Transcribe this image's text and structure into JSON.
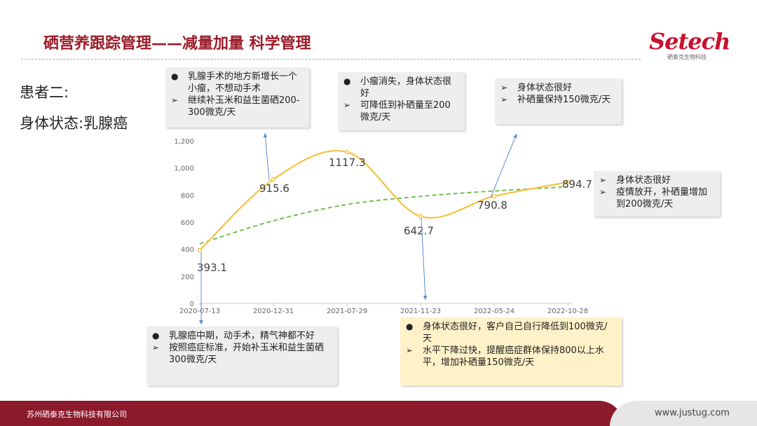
{
  "header": {
    "title": "硒营养跟踪管理——减量加量  科学管理",
    "logo_text": "Setech",
    "logo_sub": "硒泰克生物科技"
  },
  "patient": {
    "label": "患者二:",
    "status": "身体状态:乳腺癌"
  },
  "chart_data": {
    "type": "line",
    "x": [
      "2020-07-13",
      "2020-12-31",
      "2021-07-29",
      "2021-11-23",
      "2022-05-24",
      "2022-10-28"
    ],
    "series": [
      {
        "values": [
          393.1,
          915.6,
          1117.3,
          642.7,
          790.8,
          894.7
        ],
        "color": "#f5c242",
        "smooth": true,
        "data_labels": true
      },
      {
        "trendline": "logarithmic",
        "values_estimated": [
          440,
          610,
          730,
          790,
          830,
          860
        ],
        "color": "#70c050",
        "dashed": true
      }
    ],
    "data_labels": [
      "393.1",
      "915.6",
      "1117.3",
      "642.7",
      "790.8",
      "894.7"
    ],
    "y_ticks": [
      "0",
      "200",
      "400",
      "600",
      "800",
      "1,000",
      "1,200"
    ],
    "ylim": [
      0,
      1200
    ],
    "grid": false,
    "legend": "none"
  },
  "annotations": [
    {
      "id": "ann-1",
      "lines": [
        {
          "bullet": "●",
          "text": "乳腺手术的地方新增长一个小瘤，不想动手术"
        },
        {
          "bullet": "➢",
          "text": "继续补玉米和益生菌硒200-300微克/天"
        }
      ]
    },
    {
      "id": "ann-2",
      "lines": [
        {
          "bullet": "●",
          "text": "小瘤消失，身体状态很好"
        },
        {
          "bullet": "➢",
          "text": "可降低到补硒量至200微克/天"
        }
      ]
    },
    {
      "id": "ann-3",
      "lines": [
        {
          "bullet": "➢",
          "text": "身体状态很好"
        },
        {
          "bullet": "➢",
          "text": "补硒量保持150微克/天"
        }
      ]
    },
    {
      "id": "ann-4",
      "lines": [
        {
          "bullet": "➢",
          "text": "身体状态很好"
        },
        {
          "bullet": "➢",
          "text": "疫情放开，补硒量增加到200微克/天"
        }
      ]
    },
    {
      "id": "ann-5",
      "lines": [
        {
          "bullet": "●",
          "text": "乳腺癌中期，动手术，精气神都不好"
        },
        {
          "bullet": "➢",
          "text": "按照癌症标准，开始补玉米和益生菌硒300微克/天"
        }
      ]
    },
    {
      "id": "ann-6",
      "lines": [
        {
          "bullet": "●",
          "text": "身体状态很好，客户自己自行降低到100微克/天"
        },
        {
          "bullet": "➢",
          "text": " 水平下降过快，提醒癌症群体保持800以上水平，增加补硒量150微克/天"
        }
      ]
    }
  ],
  "footer": {
    "company": "苏州硒泰克生物科技有限公司",
    "website": "www.justug.com"
  },
  "colors": {
    "brand_red": "#9c1c2a",
    "footer_red": "#8b1a2b",
    "note_grey": "#eeeeee",
    "note_yellow": "#fff2c8",
    "arrow_blue": "#5b8fd0"
  }
}
